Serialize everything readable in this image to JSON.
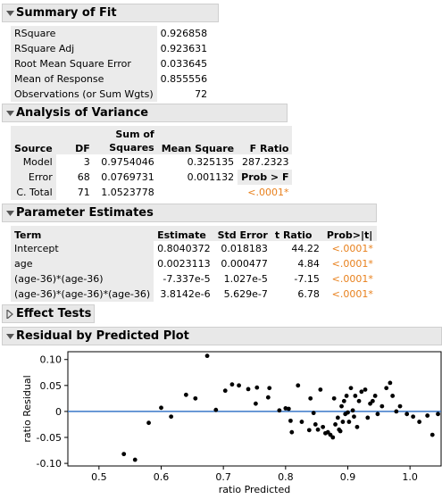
{
  "summary_of_fit": {
    "title": "Summary of Fit",
    "rows": [
      {
        "label": "RSquare",
        "value": "0.926858"
      },
      {
        "label": "RSquare Adj",
        "value": "0.923631"
      },
      {
        "label": "Root Mean Square Error",
        "value": "0.033645"
      },
      {
        "label": "Mean of Response",
        "value": "0.855556"
      },
      {
        "label": "Observations (or Sum Wgts)",
        "value": "72"
      }
    ]
  },
  "analysis_of_variance": {
    "title": "Analysis of Variance",
    "headers": {
      "source": "Source",
      "df": "DF",
      "ss_line1": "Sum of",
      "ss_line2": "Squares",
      "ms": "Mean Square",
      "f": "F Ratio"
    },
    "rows": [
      {
        "source": "Model",
        "df": "3",
        "ss": "0.9754046",
        "ms": "0.325135",
        "f": "287.2323"
      },
      {
        "source": "Error",
        "df": "68",
        "ss": "0.0769731",
        "ms": "0.001132",
        "f": "Prob > F"
      },
      {
        "source": "C. Total",
        "df": "71",
        "ss": "1.0523778",
        "ms": "",
        "f": "<.0001*"
      }
    ]
  },
  "parameter_estimates": {
    "title": "Parameter Estimates",
    "headers": {
      "term": "Term",
      "estimate": "Estimate",
      "std_error": "Std Error",
      "t_ratio": "t Ratio",
      "prob": "Prob>|t|"
    },
    "rows": [
      {
        "term": "Intercept",
        "estimate": "0.8040372",
        "std_error": "0.018183",
        "t_ratio": "44.22",
        "prob": "<.0001*"
      },
      {
        "term": "age",
        "estimate": "0.0023113",
        "std_error": "0.000477",
        "t_ratio": "4.84",
        "prob": "<.0001*"
      },
      {
        "term": "(age-36)*(age-36)",
        "estimate": "-7.337e-5",
        "std_error": "1.027e-5",
        "t_ratio": "-7.15",
        "prob": "<.0001*"
      },
      {
        "term": "(age-36)*(age-36)*(age-36)",
        "estimate": "3.8142e-6",
        "std_error": "5.629e-7",
        "t_ratio": "6.78",
        "prob": "<.0001*"
      }
    ]
  },
  "effect_tests": {
    "title": "Effect Tests"
  },
  "residual_plot": {
    "title": "Residual by Predicted Plot"
  },
  "colors": {
    "accent_orange": "#e8801c",
    "reference_line": "#3a78c8",
    "header_gray": "#e8e8e8"
  },
  "icons": {
    "expanded": "triangle-down-icon",
    "collapsed": "triangle-right-icon"
  },
  "chart_data": {
    "type": "scatter",
    "xlabel": "ratio Predicted",
    "ylabel": "ratio Residual",
    "xlim": [
      0.45,
      1.05
    ],
    "ylim": [
      -0.105,
      0.115
    ],
    "xticks": [
      0.5,
      0.6,
      0.7,
      0.8,
      0.9,
      1.0
    ],
    "xtick_labels": [
      "0.5",
      "0.6",
      "0.7",
      "0.8",
      "0.9",
      "1.0"
    ],
    "yticks": [
      -0.1,
      -0.05,
      0,
      0.05,
      0.1
    ],
    "ytick_labels": [
      "-0.10",
      "-0.05",
      "0",
      "0.05",
      "0.10"
    ],
    "reference_y": 0,
    "points": [
      {
        "x": 0.54,
        "y": -0.082
      },
      {
        "x": 0.558,
        "y": -0.093
      },
      {
        "x": 0.58,
        "y": -0.022
      },
      {
        "x": 0.6,
        "y": 0.007
      },
      {
        "x": 0.616,
        "y": -0.01
      },
      {
        "x": 0.64,
        "y": 0.032
      },
      {
        "x": 0.655,
        "y": 0.025
      },
      {
        "x": 0.674,
        "y": 0.107
      },
      {
        "x": 0.688,
        "y": 0.003
      },
      {
        "x": 0.703,
        "y": 0.04
      },
      {
        "x": 0.714,
        "y": 0.052
      },
      {
        "x": 0.725,
        "y": 0.05
      },
      {
        "x": 0.74,
        "y": 0.043
      },
      {
        "x": 0.752,
        "y": 0.015
      },
      {
        "x": 0.754,
        "y": 0.046
      },
      {
        "x": 0.772,
        "y": 0.027
      },
      {
        "x": 0.774,
        "y": 0.045
      },
      {
        "x": 0.79,
        "y": 0.002
      },
      {
        "x": 0.8,
        "y": 0.006
      },
      {
        "x": 0.805,
        "y": 0.005
      },
      {
        "x": 0.808,
        "y": -0.018
      },
      {
        "x": 0.81,
        "y": -0.04
      },
      {
        "x": 0.82,
        "y": 0.05
      },
      {
        "x": 0.826,
        "y": -0.02
      },
      {
        "x": 0.838,
        "y": -0.036
      },
      {
        "x": 0.84,
        "y": 0.025
      },
      {
        "x": 0.845,
        "y": -0.003
      },
      {
        "x": 0.848,
        "y": -0.025
      },
      {
        "x": 0.852,
        "y": -0.035
      },
      {
        "x": 0.856,
        "y": 0.042
      },
      {
        "x": 0.86,
        "y": -0.03
      },
      {
        "x": 0.864,
        "y": -0.042
      },
      {
        "x": 0.868,
        "y": -0.04
      },
      {
        "x": 0.872,
        "y": -0.045
      },
      {
        "x": 0.876,
        "y": -0.05
      },
      {
        "x": 0.878,
        "y": 0.025
      },
      {
        "x": 0.88,
        "y": -0.025
      },
      {
        "x": 0.884,
        "y": -0.012
      },
      {
        "x": 0.886,
        "y": -0.035
      },
      {
        "x": 0.888,
        "y": -0.038
      },
      {
        "x": 0.89,
        "y": 0.01
      },
      {
        "x": 0.892,
        "y": -0.02
      },
      {
        "x": 0.894,
        "y": 0.02
      },
      {
        "x": 0.896,
        "y": -0.005
      },
      {
        "x": 0.898,
        "y": 0.03
      },
      {
        "x": 0.9,
        "y": -0.002
      },
      {
        "x": 0.902,
        "y": -0.02
      },
      {
        "x": 0.905,
        "y": 0.045
      },
      {
        "x": 0.908,
        "y": 0.002
      },
      {
        "x": 0.91,
        "y": -0.01
      },
      {
        "x": 0.912,
        "y": 0.03
      },
      {
        "x": 0.915,
        "y": -0.03
      },
      {
        "x": 0.918,
        "y": 0.02
      },
      {
        "x": 0.922,
        "y": 0.038
      },
      {
        "x": 0.928,
        "y": 0.042
      },
      {
        "x": 0.932,
        "y": -0.012
      },
      {
        "x": 0.936,
        "y": 0.015
      },
      {
        "x": 0.94,
        "y": 0.02
      },
      {
        "x": 0.944,
        "y": 0.03
      },
      {
        "x": 0.948,
        "y": -0.005
      },
      {
        "x": 0.955,
        "y": 0.01
      },
      {
        "x": 0.962,
        "y": 0.045
      },
      {
        "x": 0.968,
        "y": 0.055
      },
      {
        "x": 0.972,
        "y": 0.03
      },
      {
        "x": 0.978,
        "y": 0.0
      },
      {
        "x": 0.984,
        "y": 0.01
      },
      {
        "x": 0.995,
        "y": -0.005
      },
      {
        "x": 1.005,
        "y": -0.01
      },
      {
        "x": 1.015,
        "y": -0.02
      },
      {
        "x": 1.028,
        "y": -0.008
      },
      {
        "x": 1.036,
        "y": -0.045
      },
      {
        "x": 1.045,
        "y": -0.005
      }
    ]
  }
}
